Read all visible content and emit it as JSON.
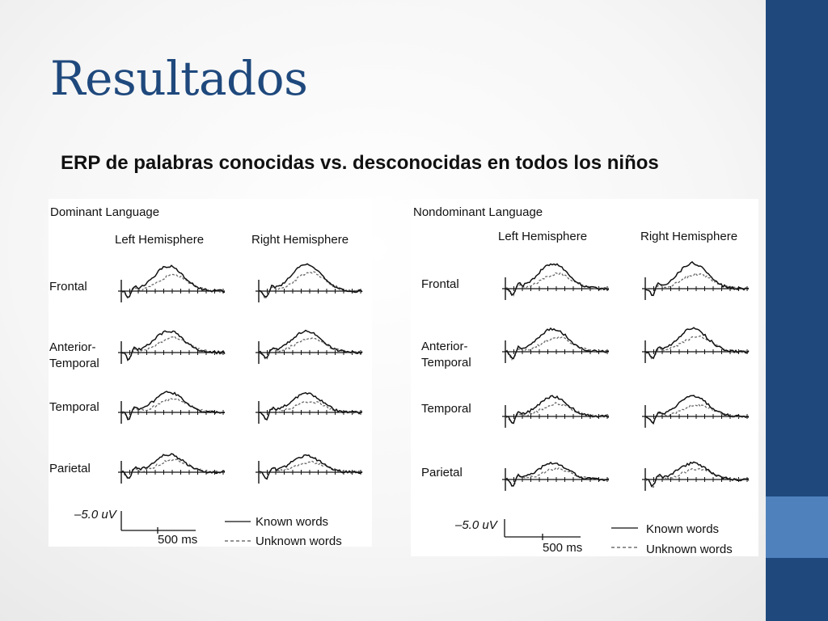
{
  "slide": {
    "title": "Resultados",
    "subtitle": "ERP de palabras conocidas vs. desconocidas en todos los niños"
  },
  "theme": {
    "accent": "#1f497d",
    "accent_light": "#4f81bd",
    "title_color": "#1f497d"
  },
  "figure": {
    "panels": [
      {
        "heading": "Dominant Language",
        "columns": [
          "Left Hemisphere",
          "Right Hemisphere"
        ]
      },
      {
        "heading": "Nondominant Language",
        "columns": [
          "Left Hemisphere",
          "Right Hemisphere"
        ]
      }
    ],
    "regions": [
      "Frontal",
      "Anterior-",
      "Temporal",
      "Temporal",
      "Parietal"
    ],
    "scale": {
      "amplitude": "–5.0 uV",
      "time": "500 ms"
    },
    "legend": {
      "known": "Known words",
      "unknown": "Unknown words"
    }
  }
}
